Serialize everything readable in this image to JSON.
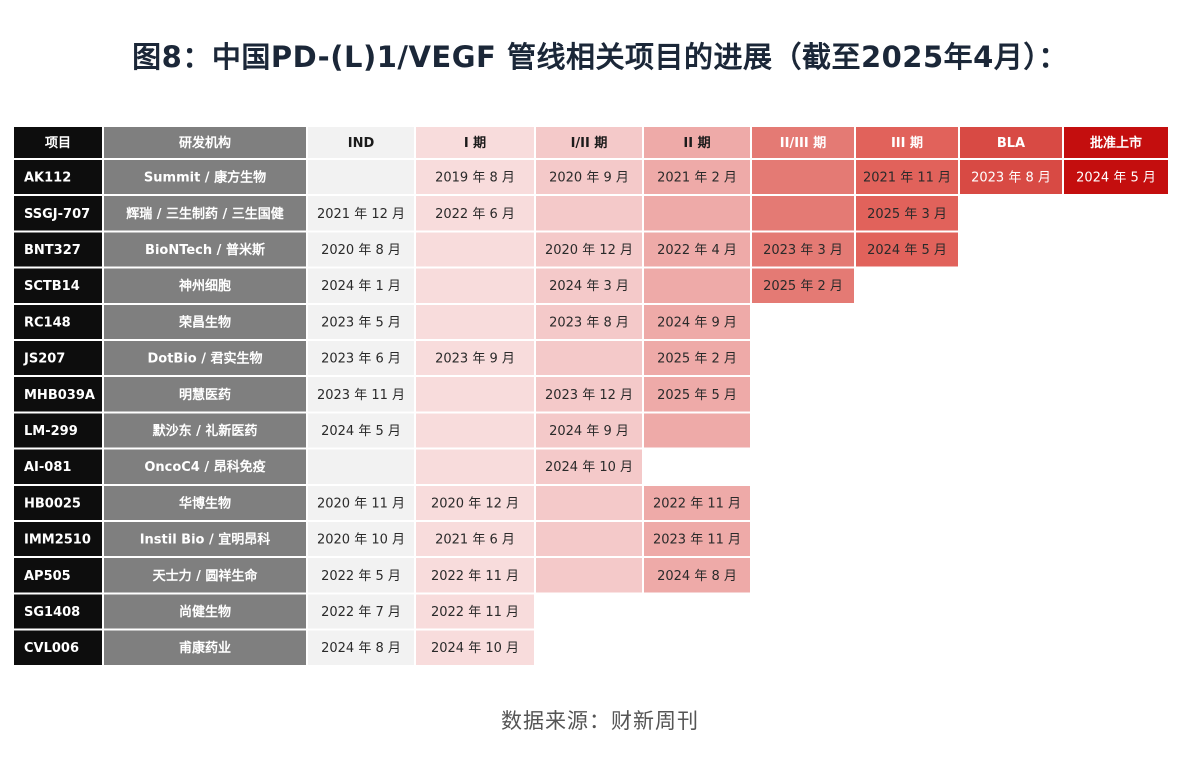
{
  "chart_data": {
    "type": "table",
    "title": "图8：中国PD-(L)1/VEGF 管线相关项目的进展（截至2025年4月）：",
    "source": "数据来源：财新周刊",
    "columns": [
      "项目",
      "研发机构",
      "IND",
      "I 期",
      "I/II 期",
      "II 期",
      "II/III 期",
      "III 期",
      "BLA",
      "批准上市"
    ],
    "rows": [
      {
        "project": "AK112",
        "org": "Summit / 康方生物",
        "stages": [
          "",
          "2019 年 8 月",
          "2020 年 9 月",
          "2021 年 2 月",
          "",
          "2021 年 11 月",
          "2023 年 8 月",
          "2024 年 5 月"
        ],
        "reached": 8
      },
      {
        "project": "SSGJ-707",
        "org": "辉瑞 / 三生制药 / 三生国健",
        "stages": [
          "2021 年 12 月",
          "2022 年 6 月",
          "",
          "",
          "",
          "2025 年 3 月",
          "",
          ""
        ],
        "reached": 6
      },
      {
        "project": "BNT327",
        "org": "BioNTech / 普米斯",
        "stages": [
          "2020 年 8 月",
          "",
          "2020 年 12 月",
          "2022 年 4 月",
          "2023 年 3 月",
          "2024 年 5 月",
          "",
          ""
        ],
        "reached": 6
      },
      {
        "project": "SCTB14",
        "org": "神州细胞",
        "stages": [
          "2024 年 1 月",
          "",
          "2024 年 3 月",
          "",
          "2025 年 2 月",
          "",
          "",
          ""
        ],
        "reached": 5
      },
      {
        "project": "RC148",
        "org": "荣昌生物",
        "stages": [
          "2023 年 5 月",
          "",
          "2023 年 8 月",
          "2024 年 9 月",
          "",
          "",
          "",
          ""
        ],
        "reached": 4
      },
      {
        "project": "JS207",
        "org": "DotBio / 君实生物",
        "stages": [
          "2023 年 6 月",
          "2023 年 9 月",
          "",
          "2025 年 2 月",
          "",
          "",
          "",
          ""
        ],
        "reached": 4
      },
      {
        "project": "MHB039A",
        "org": "明慧医药",
        "stages": [
          "2023 年 11 月",
          "",
          "2023 年 12 月",
          "2025 年 5 月",
          "",
          "",
          "",
          ""
        ],
        "reached": 4
      },
      {
        "project": "LM-299",
        "org": "默沙东 / 礼新医药",
        "stages": [
          "2024 年 5 月",
          "",
          "2024 年 9 月",
          "",
          "",
          "",
          "",
          ""
        ],
        "reached": 4
      },
      {
        "project": "AI-081",
        "org": "OncoC4 / 昂科免疫",
        "stages": [
          "",
          "",
          "2024 年 10 月",
          "",
          "",
          "",
          "",
          ""
        ],
        "reached": 3
      },
      {
        "project": "HB0025",
        "org": "华博生物",
        "stages": [
          "2020 年 11 月",
          "2020 年 12 月",
          "",
          "2022 年 11 月",
          "",
          "",
          "",
          ""
        ],
        "reached": 4
      },
      {
        "project": "IMM2510",
        "org": "Instil Bio / 宜明昂科",
        "stages": [
          "2020 年 10 月",
          "2021 年 6 月",
          "",
          "2023 年 11 月",
          "",
          "",
          "",
          ""
        ],
        "reached": 4
      },
      {
        "project": "AP505",
        "org": "天士力 / 圆祥生命",
        "stages": [
          "2022 年 5 月",
          "2022 年 11 月",
          "",
          "2024 年 8 月",
          "",
          "",
          "",
          ""
        ],
        "reached": 4
      },
      {
        "project": "SG1408",
        "org": "尚健生物",
        "stages": [
          "2022 年 7 月",
          "2022 年 11 月",
          "",
          "",
          "",
          "",
          "",
          ""
        ],
        "reached": 2
      },
      {
        "project": "CVL006",
        "org": "甫康药业",
        "stages": [
          "2024 年 8 月",
          "2024 年 10 月",
          "",
          "",
          "",
          "",
          "",
          ""
        ],
        "reached": 2
      }
    ],
    "colors": {
      "project_col": "#0d0d0d",
      "org_col": "#7f7f7f",
      "stage_cells": [
        "#f2f2f2",
        "#f8dcdc",
        "#f4c9c9",
        "#eeaaa8",
        "#e47a74",
        "#e1625b",
        "#d84a44",
        "#c40e0e"
      ],
      "stage_headers": [
        "#f2f2f2",
        "#f8dcdc",
        "#f4c9c9",
        "#eeaaa8",
        "#e47a74",
        "#e1625b",
        "#d84a44",
        "#c40e0e"
      ]
    }
  }
}
